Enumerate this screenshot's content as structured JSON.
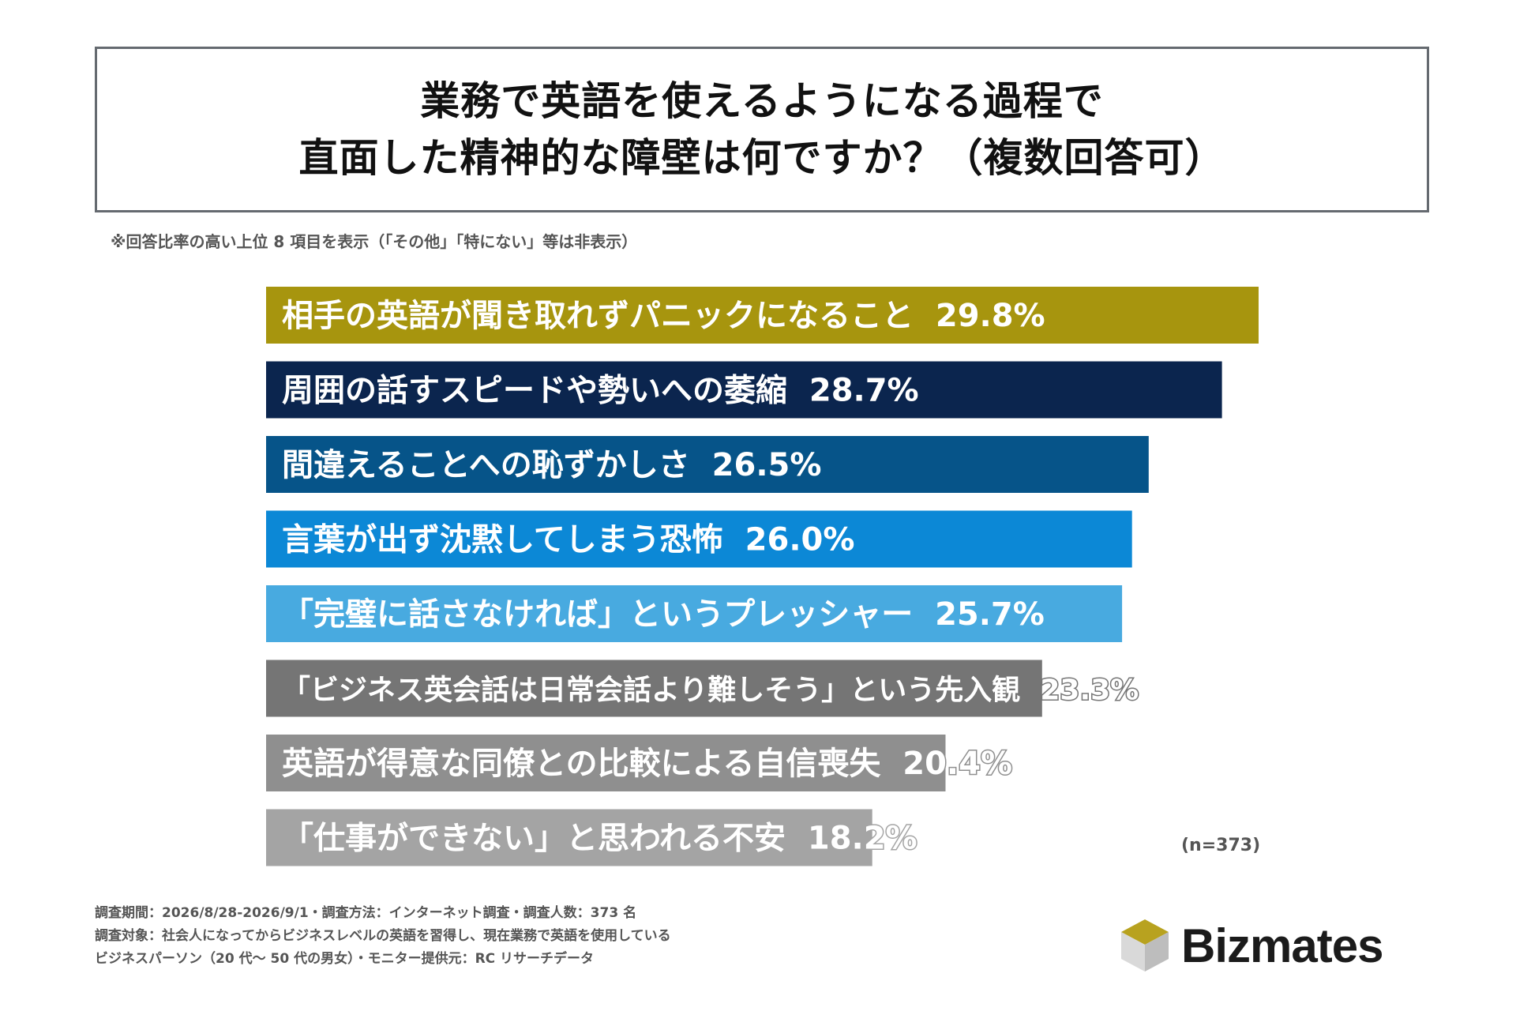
{
  "title": {
    "line1": "業務で英語を使えるようになる過程で",
    "line2": "直面した精神的な障壁は何ですか？（複数回答可）"
  },
  "note": "※回答比率の高い上位 8 項目を表示（「その他」「特にない」等は非表示）",
  "sample_size": "(n=373)",
  "footer": {
    "line1": "調査期間：2026/8/28-2026/9/1・調査方法：インターネット調査・調査人数：373 名",
    "line2": "調査対象：社会人になってからビジネスレベルの英語を習得し、現在業務で英語を使用している",
    "line3": "ビジネスパーソン（20 代～ 50 代の男女）・モニター提供元：RC リサーチデータ"
  },
  "logo": {
    "text": "Bizmates",
    "icon": "cube-icon"
  },
  "chart_data": {
    "type": "bar",
    "orientation": "horizontal",
    "unit": "%",
    "categories": [
      "相手の英語が聞き取れずパニックになること",
      "周囲の話すスピードや勢いへの萎縮",
      "間違えることへの恥ずかしさ",
      "言葉が出ず沈黙してしまう恐怖",
      "「完璧に話さなければ」というプレッシャー",
      "「ビジネス英会話は日常会話より難しそう」という先入観",
      "英語が得意な同僚との比較による自信喪失",
      "「仕事ができない」と思われる不安"
    ],
    "values": [
      29.8,
      28.7,
      26.5,
      26.0,
      25.7,
      23.3,
      20.4,
      18.2
    ],
    "value_labels": [
      "29.8%",
      "28.7%",
      "26.5%",
      "26.0%",
      "25.7%",
      "23.3%",
      "20.4%",
      "18.2%"
    ],
    "colors": [
      "#a7950e",
      "#0b254e",
      "#065489",
      "#0c88d6",
      "#48aae0",
      "#757575",
      "#8f8f8f",
      "#a4a4a4"
    ]
  }
}
